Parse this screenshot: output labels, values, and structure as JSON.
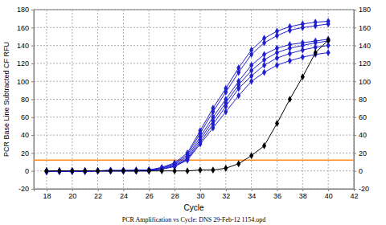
{
  "chart_data": {
    "type": "line",
    "subtitle": "PCR Amplification vs Cycle: DNS 29-Feb-12 1154.opd",
    "x_label": "Cycle",
    "y_label": "PCR Base Line Subtracted CF RFU",
    "x": [
      18,
      19,
      20,
      21,
      22,
      23,
      24,
      25,
      26,
      27,
      28,
      29,
      30,
      31,
      32,
      33,
      34,
      35,
      36,
      37,
      38,
      39,
      40
    ],
    "series": [
      {
        "color": "#2020d0",
        "marker": "diamond",
        "values": [
          -1,
          0,
          0,
          0,
          0,
          1,
          0,
          1,
          1,
          4,
          9,
          20,
          45,
          70,
          92,
          115,
          135,
          148,
          156,
          161,
          164,
          166,
          167
        ]
      },
      {
        "color": "#2020d0",
        "marker": "diamond",
        "values": [
          0,
          0,
          -1,
          0,
          0,
          0,
          1,
          0,
          1,
          3,
          8,
          18,
          42,
          66,
          88,
          110,
          130,
          143,
          151,
          157,
          160,
          162,
          164
        ]
      },
      {
        "color": "#2020d0",
        "marker": "diamond",
        "values": [
          -1,
          0,
          0,
          0,
          0,
          0,
          0,
          1,
          1,
          3,
          7,
          16,
          38,
          60,
          80,
          100,
          118,
          130,
          137,
          141,
          143,
          145,
          147
        ]
      },
      {
        "color": "#2020d0",
        "marker": "diamond",
        "values": [
          0,
          -1,
          0,
          0,
          0,
          0,
          0,
          0,
          1,
          2,
          6,
          14,
          35,
          56,
          76,
          96,
          112,
          124,
          132,
          137,
          140,
          143,
          145
        ]
      },
      {
        "color": "#2020d0",
        "marker": "diamond",
        "values": [
          0,
          0,
          0,
          -1,
          0,
          0,
          0,
          0,
          0,
          2,
          5,
          13,
          32,
          52,
          72,
          92,
          106,
          118,
          126,
          131,
          135,
          138,
          140
        ]
      },
      {
        "color": "#2020d0",
        "marker": "diamond",
        "values": [
          0,
          0,
          0,
          0,
          0,
          0,
          0,
          0,
          0,
          2,
          5,
          12,
          30,
          48,
          66,
          84,
          100,
          110,
          118,
          123,
          127,
          130,
          132
        ]
      },
      {
        "color": "#000000",
        "marker": "diamond",
        "values": [
          0,
          0,
          0,
          0,
          0,
          0,
          0,
          0,
          0,
          0,
          0,
          0,
          1,
          1,
          3,
          8,
          17,
          28,
          53,
          80,
          105,
          132,
          146
        ]
      }
    ],
    "threshold": {
      "value": 12,
      "color": "#ff8c1a"
    },
    "xlim": [
      17,
      42
    ],
    "xticks": [
      18,
      20,
      22,
      24,
      26,
      28,
      30,
      32,
      34,
      36,
      38,
      40,
      42
    ],
    "ylim": [
      -20,
      180
    ],
    "yticks": [
      -20,
      0,
      20,
      40,
      60,
      80,
      100,
      120,
      140,
      160,
      180
    ],
    "y2lim": [
      -20,
      180
    ],
    "y2ticks": [
      -20,
      0,
      20,
      40,
      60,
      80,
      100,
      120,
      140,
      160,
      180
    ],
    "grid": true
  }
}
